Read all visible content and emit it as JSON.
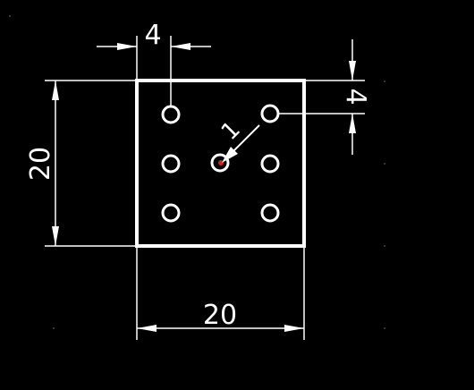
{
  "drawing": {
    "background_color": "#000000",
    "line_color": "#ffffff",
    "marker_color": "#cc2222"
  },
  "dimensions": {
    "top_spacing": "4",
    "right_spacing": "4",
    "left_height": "20",
    "bottom_width": "20"
  },
  "leader": {
    "label": "1"
  },
  "holes": {
    "count": 7
  }
}
